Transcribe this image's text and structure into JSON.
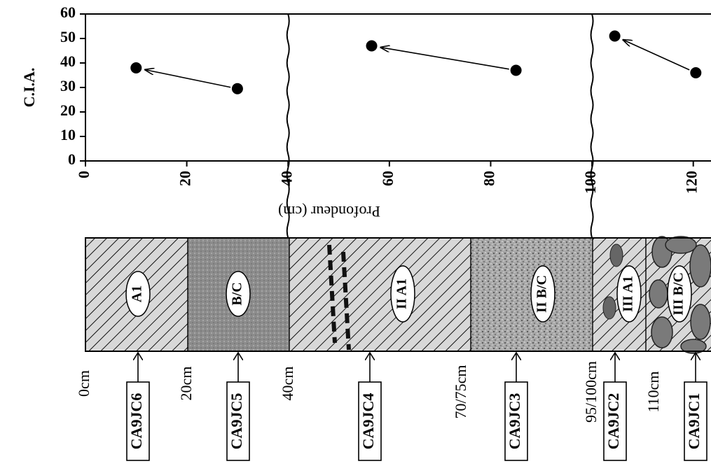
{
  "chart_data": {
    "type": "scatter",
    "y_label": "C.I.A.",
    "x_label": "Profondeur (cm)",
    "xlim": [
      0,
      123.5
    ],
    "ylim": [
      0,
      60
    ],
    "xticks": [
      0,
      20,
      40,
      60,
      80,
      100,
      120
    ],
    "yticks": [
      0,
      10,
      20,
      30,
      40,
      50,
      60
    ],
    "breaks": [
      40,
      100
    ],
    "series": [
      {
        "x": [
          30,
          10
        ],
        "values": [
          29.5,
          38
        ],
        "color": "#000000"
      },
      {
        "x": [
          85,
          56.5
        ],
        "values": [
          37,
          47
        ],
        "color": "#000000"
      },
      {
        "x": [
          120.5,
          104.5
        ],
        "values": [
          36,
          51
        ],
        "color": "#000000"
      }
    ]
  },
  "profile": {
    "horizons": [
      "A1",
      "B/C",
      "II A1",
      "II B/C",
      "III A1",
      "III B/C"
    ],
    "depths": [
      "0cm",
      "20cm",
      "40cm",
      "70/75cm",
      "95/100cm",
      "110cm"
    ],
    "samples": [
      "CA9JC6",
      "CA9JC5",
      "CA9JC4",
      "CA9JC3",
      "CA9JC2",
      "CA9JC1"
    ]
  }
}
